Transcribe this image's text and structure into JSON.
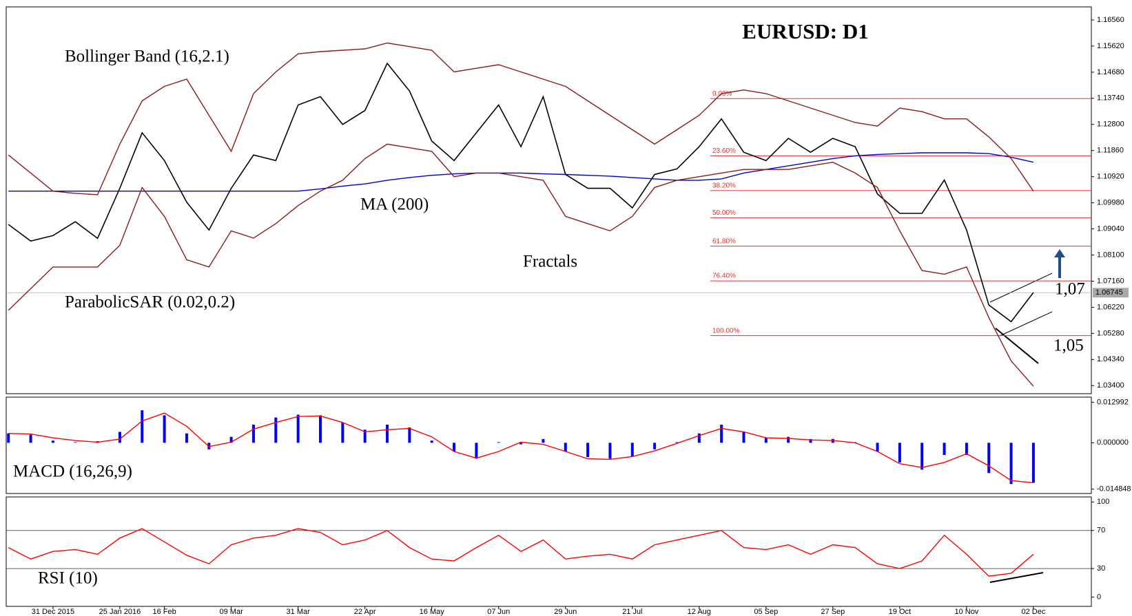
{
  "chart_data": [
    {
      "type": "line",
      "title": "EURUSD: D1",
      "annotations": [
        "Bollinger Band (16,2.1)",
        "MA (200)",
        "Fractals",
        "ParabolicSAR (0.02,0.2)",
        "1,07",
        "1,05"
      ],
      "ylim": [
        1.0311,
        1.1703
      ],
      "yticks": [
        {
          "value": 1.1656,
          "label": "1.16560"
        },
        {
          "value": 1.1562,
          "label": "1.15620"
        },
        {
          "value": 1.1468,
          "label": "1.14680"
        },
        {
          "value": 1.1374,
          "label": "1.13740"
        },
        {
          "value": 1.128,
          "label": "1.12800"
        },
        {
          "value": 1.1186,
          "label": "1.11860"
        },
        {
          "value": 1.1092,
          "label": "1.10920"
        },
        {
          "value": 1.0998,
          "label": "1.09980"
        },
        {
          "value": 1.0904,
          "label": "1.09040"
        },
        {
          "value": 1.081,
          "label": "1.08100"
        },
        {
          "value": 1.0716,
          "label": "1.07160"
        },
        {
          "value": 1.0622,
          "label": "1.06220"
        },
        {
          "value": 1.0528,
          "label": "1.05280"
        },
        {
          "value": 1.0434,
          "label": "1.04340"
        },
        {
          "value": 1.034,
          "label": "1.03400"
        }
      ],
      "series": [
        {
          "color": "#000000",
          "values": [
            1.092,
            1.086,
            1.088,
            1.093,
            1.087,
            1.105,
            1.125,
            1.115,
            1.1,
            1.09,
            1.105,
            1.117,
            1.115,
            1.135,
            1.138,
            1.128,
            1.133,
            1.15,
            1.14,
            1.122,
            1.115,
            1.125,
            1.135,
            1.12,
            1.138,
            1.11,
            1.105,
            1.105,
            1.098,
            1.11,
            1.112,
            1.12,
            1.13,
            1.118,
            1.115,
            1.123,
            1.118,
            1.123,
            1.12,
            1.103,
            1.096,
            1.096,
            1.108,
            1.09,
            1.063,
            1.057,
            1.0675
          ]
        },
        {
          "color": "#0000cc",
          "values": [
            1.104,
            1.104,
            1.104,
            1.104,
            1.104,
            1.104,
            1.104,
            1.104,
            1.104,
            1.104,
            1.104,
            1.104,
            1.104,
            1.104,
            1.1048,
            1.1058,
            1.1066,
            1.1079,
            1.1089,
            1.1097,
            1.1102,
            1.1105,
            1.1105,
            1.1105,
            1.1102,
            1.11,
            1.1097,
            1.1094,
            1.1089,
            1.1084,
            1.1079,
            1.1079,
            1.1084,
            1.1105,
            1.1118,
            1.1131,
            1.1144,
            1.1157,
            1.1167,
            1.1172,
            1.1175,
            1.1178,
            1.1178,
            1.1178,
            1.1175,
            1.1162,
            1.1144
          ]
        },
        {
          "color": "#8b1a1a",
          "values": [
            1.117,
            1.1105,
            1.104,
            1.1032,
            1.1027,
            1.1209,
            1.1365,
            1.1417,
            1.1443,
            1.1313,
            1.1183,
            1.1391,
            1.1469,
            1.1534,
            1.1542,
            1.1547,
            1.1552,
            1.1573,
            1.156,
            1.1547,
            1.1469,
            1.1482,
            1.1495,
            1.1469,
            1.1443,
            1.1417,
            1.1365,
            1.1313,
            1.1261,
            1.1209,
            1.1261,
            1.1313,
            1.1391,
            1.1404,
            1.1391,
            1.1365,
            1.1339,
            1.1313,
            1.1287,
            1.1274,
            1.1339,
            1.1326,
            1.13,
            1.13,
            1.1235,
            1.1157,
            1.104
          ]
        },
        {
          "color": "#8b1a1a",
          "values": [
            1.0611,
            1.0689,
            1.0767,
            1.0767,
            1.0767,
            1.0845,
            1.1053,
            1.0949,
            1.0793,
            1.0767,
            1.0897,
            1.0871,
            1.0923,
            1.0988,
            1.104,
            1.1079,
            1.1157,
            1.1209,
            1.1196,
            1.1183,
            1.1092,
            1.1105,
            1.1105,
            1.1092,
            1.1079,
            1.0949,
            1.0923,
            1.0897,
            1.0949,
            1.1053,
            1.1079,
            1.1092,
            1.1105,
            1.1118,
            1.1118,
            1.1118,
            1.1131,
            1.1144,
            1.1105,
            1.1053,
            1.0897,
            1.0754,
            1.0741,
            1.0767,
            1.0585,
            1.0429,
            1.0338
          ]
        }
      ],
      "fibonacci": [
        {
          "value": 1.1373,
          "label": "0.00%"
        },
        {
          "value": 1.1167,
          "label": "23.60%"
        },
        {
          "value": 1.1042,
          "label": "38.20%"
        },
        {
          "value": 1.0944,
          "label": "50.00%"
        },
        {
          "value": 1.0842,
          "label": "61.80%"
        },
        {
          "value": 1.0717,
          "label": "76.40%"
        },
        {
          "value": 1.052,
          "label": "100.00%"
        }
      ],
      "fib_color": "#e03030",
      "last_price": {
        "value": 1.06745,
        "label": "1.06745"
      }
    },
    {
      "type": "bar",
      "title": "MACD (16,26,9)",
      "ylim": [
        -0.01624,
        0.01462
      ],
      "yticks": [
        0.012992,
        {
          "value": 0,
          "label": "0.000000"
        },
        -0.014848
      ],
      "series": [
        {
          "type": "bar",
          "color": "#0000ff",
          "values": [
            0.003,
            0.0026,
            0.0007,
            0.0002,
            0.0005,
            0.0035,
            0.0104,
            0.0088,
            0.003,
            -0.0021,
            0.0019,
            0.0058,
            0.0081,
            0.009,
            0.0088,
            0.0065,
            0.0042,
            0.0058,
            0.0049,
            0.0007,
            -0.0028,
            -0.0051,
            0.0002,
            -0.0005,
            0.0012,
            -0.0028,
            -0.0046,
            -0.0051,
            -0.0044,
            -0.0021,
            0.0002,
            0.003,
            0.0058,
            0.0035,
            0.0016,
            0.0019,
            0.0012,
            0.0012,
            0.0002,
            -0.0028,
            -0.0063,
            -0.0086,
            -0.0039,
            -0.0039,
            -0.0097,
            -0.0132,
            -0.0128
          ]
        },
        {
          "type": "line",
          "color": "#ff0000",
          "values": [
            0.003,
            0.0028,
            0.0016,
            0.0007,
            0.0002,
            0.0012,
            0.007,
            0.0095,
            0.0053,
            -0.0012,
            0.0002,
            0.0044,
            0.0065,
            0.0084,
            0.0086,
            0.0065,
            0.0035,
            0.0042,
            0.0046,
            0.0019,
            -0.0028,
            -0.0049,
            -0.0028,
            0.0002,
            -0.0005,
            -0.0028,
            -0.0051,
            -0.0053,
            -0.0044,
            -0.0026,
            -0.0002,
            0.0023,
            0.0046,
            0.0035,
            0.0016,
            0.0014,
            0.0009,
            0.0007,
            0,
            -0.0028,
            -0.0067,
            -0.0079,
            -0.0063,
            -0.0035,
            -0.0074,
            -0.0121,
            -0.0128
          ]
        }
      ]
    },
    {
      "type": "line",
      "title": "RSI (10)",
      "ylim": [
        -9.8,
        105.3
      ],
      "yticks": [
        0,
        30,
        70,
        100
      ],
      "grid": [
        30,
        70
      ],
      "categories": [
        null,
        null,
        "31 Dec 2015",
        null,
        null,
        "25 Jan 2016",
        null,
        "16 Feb",
        null,
        null,
        "09 Mar",
        null,
        null,
        "31 Mar",
        null,
        null,
        "22 Apr",
        null,
        null,
        "16 May",
        null,
        null,
        "07 Jun",
        null,
        null,
        "29 Jun",
        null,
        null,
        "21 Jul",
        null,
        null,
        "12 Aug",
        null,
        null,
        "05 Sep",
        null,
        null,
        "27 Sep",
        null,
        null,
        "19 Oct",
        null,
        null,
        "10 Nov",
        null,
        null,
        "02 Dec"
      ],
      "series": [
        {
          "color": "#ff0000",
          "values": [
            52,
            40,
            48,
            50,
            45,
            62,
            72,
            58,
            44,
            35,
            55,
            62,
            65,
            72,
            68,
            55,
            60,
            70,
            52,
            40,
            38,
            52,
            65,
            48,
            60,
            40,
            43,
            45,
            40,
            55,
            60,
            65,
            70,
            52,
            50,
            55,
            45,
            55,
            52,
            35,
            30,
            38,
            65,
            45,
            22,
            25,
            45
          ]
        }
      ]
    }
  ]
}
